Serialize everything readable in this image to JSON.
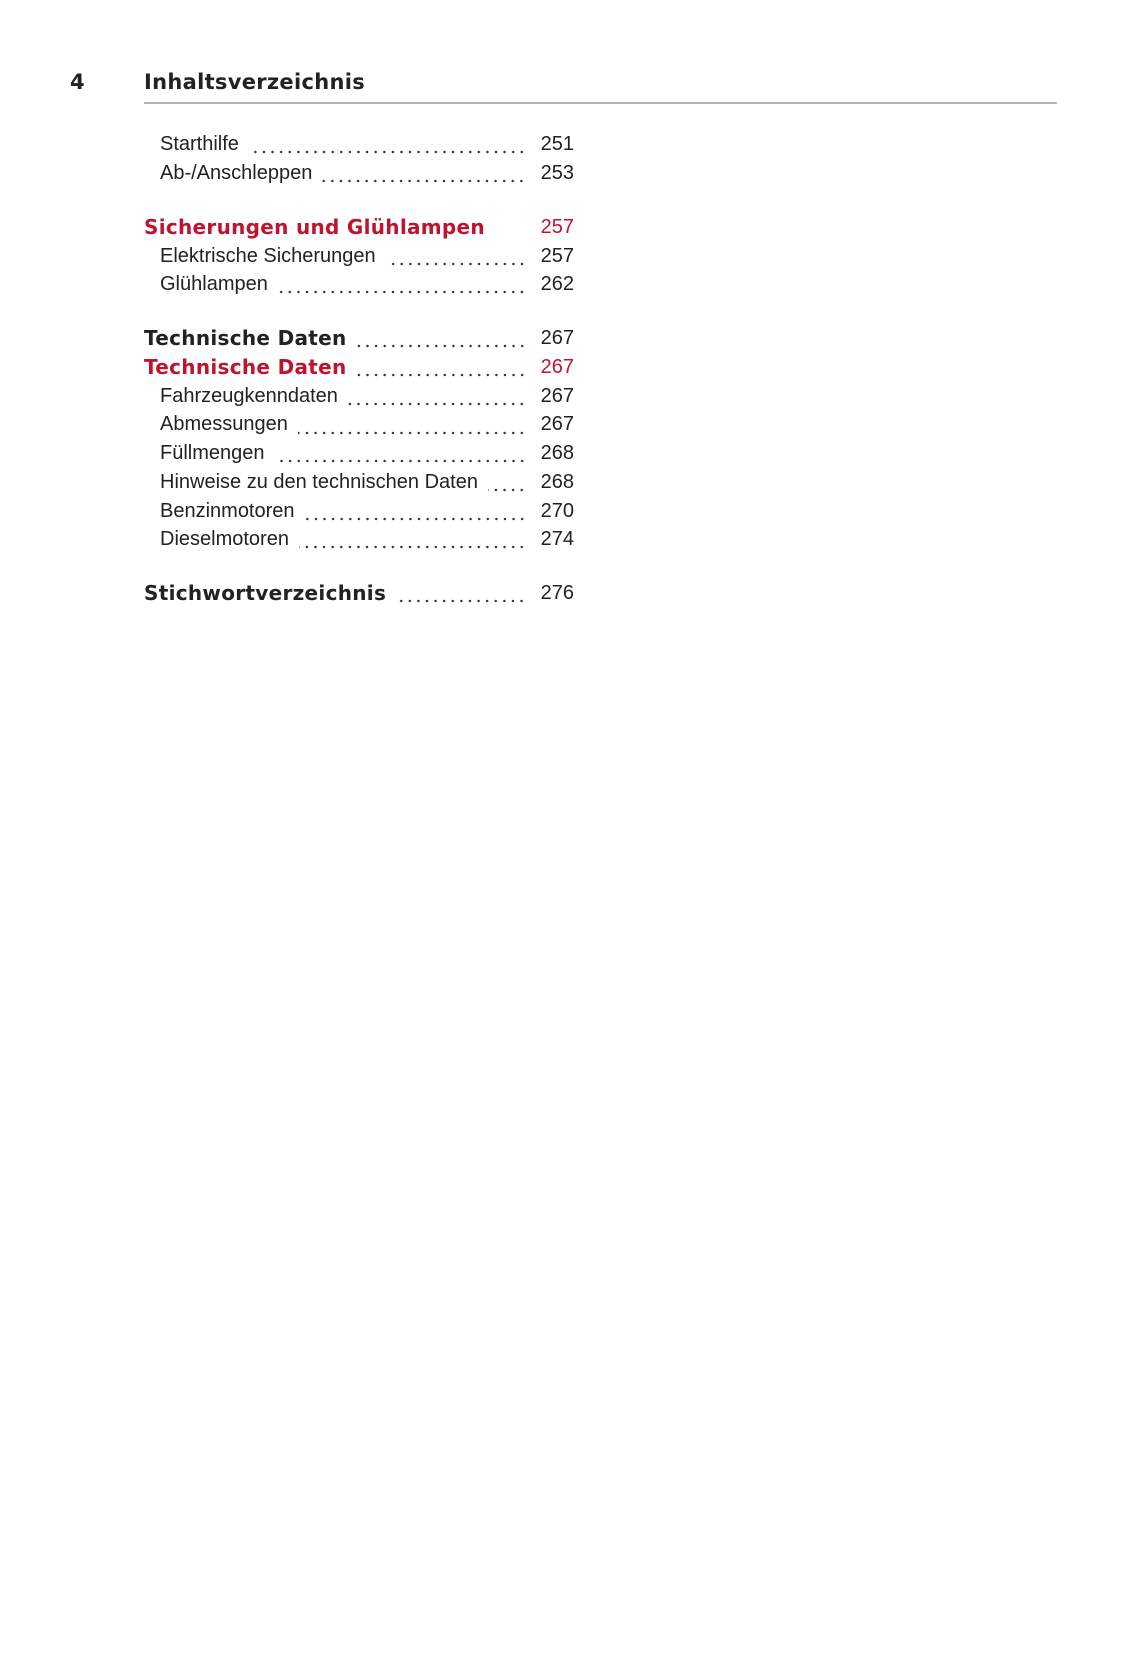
{
  "header": {
    "page_number": "4",
    "title": "Inhaltsverzeichnis"
  },
  "colors": {
    "accent": "#c0142e",
    "text": "#222222"
  },
  "toc": [
    {
      "label": "Starthilfe",
      "page": "251",
      "level": "sub",
      "leader": true
    },
    {
      "label": "Ab-/Anschleppen",
      "page": "253",
      "level": "sub",
      "leader": true
    },
    {
      "label": "Sicherungen und Glühlampen",
      "page": "257",
      "level": "head",
      "red": true,
      "leader": false,
      "gap_before": true
    },
    {
      "label": "Elektrische Sicherungen",
      "page": "257",
      "level": "sub",
      "leader": true
    },
    {
      "label": "Glühlampen",
      "page": "262",
      "level": "sub",
      "leader": true
    },
    {
      "label": "Technische Daten",
      "page": "267",
      "level": "head",
      "leader": true,
      "gap_before": true
    },
    {
      "label": "Technische Daten",
      "page": "267",
      "level": "head",
      "red": true,
      "leader": true
    },
    {
      "label": "Fahrzeugkenndaten",
      "page": "267",
      "level": "sub",
      "leader": true
    },
    {
      "label": "Abmessungen",
      "page": "267",
      "level": "sub",
      "leader": true
    },
    {
      "label": "Füllmengen",
      "page": "268",
      "level": "sub",
      "leader": true
    },
    {
      "label": "Hinweise zu den technischen Daten",
      "page": "268",
      "level": "sub",
      "leader": true
    },
    {
      "label": "Benzinmotoren",
      "page": "270",
      "level": "sub",
      "leader": true
    },
    {
      "label": "Dieselmotoren",
      "page": "274",
      "level": "sub",
      "leader": true
    },
    {
      "label": "Stichwortverzeichnis",
      "page": "276",
      "level": "head",
      "leader": true,
      "gap_before": true
    }
  ]
}
